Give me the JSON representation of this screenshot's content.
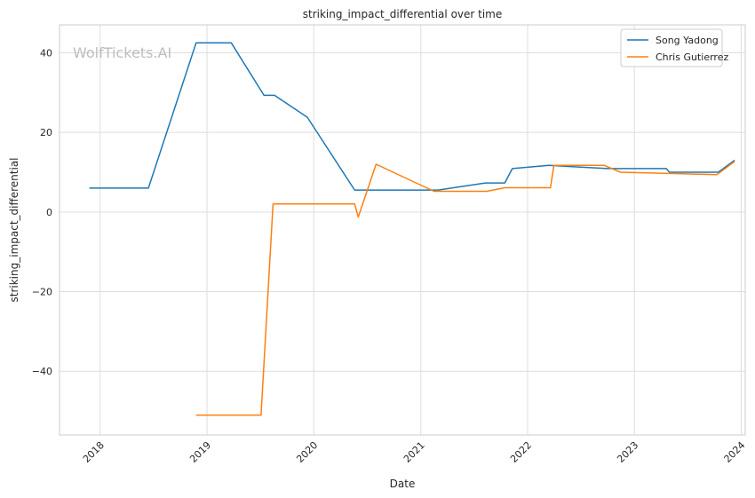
{
  "chart_data": {
    "type": "line",
    "title": "striking_impact_differential over time",
    "xlabel": "Date",
    "ylabel": "striking_impact_differential",
    "x_axis_type": "date",
    "xlim": [
      "2017-08-15",
      "2024-01-15"
    ],
    "ylim": [
      -56,
      47
    ],
    "x_ticks": [
      {
        "date": "2018-01-01",
        "label": "2018"
      },
      {
        "date": "2019-01-01",
        "label": "2019"
      },
      {
        "date": "2020-01-01",
        "label": "2020"
      },
      {
        "date": "2021-01-01",
        "label": "2021"
      },
      {
        "date": "2022-01-01",
        "label": "2022"
      },
      {
        "date": "2023-01-01",
        "label": "2023"
      },
      {
        "date": "2024-01-01",
        "label": "2024"
      }
    ],
    "y_ticks": [
      {
        "value": -40,
        "label": "−40"
      },
      {
        "value": -20,
        "label": "−20"
      },
      {
        "value": 0,
        "label": "0"
      },
      {
        "value": 20,
        "label": "20"
      },
      {
        "value": 40,
        "label": "40"
      }
    ],
    "grid": true,
    "legend_position": "top-right",
    "watermark": "WolfTickets.AI",
    "series": [
      {
        "name": "Song Yadong",
        "color": "#1f77b4",
        "points": [
          {
            "x": "2017-11-25",
            "y": 6
          },
          {
            "x": "2018-06-15",
            "y": 6
          },
          {
            "x": "2018-11-25",
            "y": 42.5
          },
          {
            "x": "2019-03-25",
            "y": 42.5
          },
          {
            "x": "2019-07-15",
            "y": 29.3
          },
          {
            "x": "2019-08-20",
            "y": 29.3
          },
          {
            "x": "2019-12-10",
            "y": 23.8
          },
          {
            "x": "2020-05-20",
            "y": 5.5
          },
          {
            "x": "2021-03-01",
            "y": 5.5
          },
          {
            "x": "2021-08-10",
            "y": 7.3
          },
          {
            "x": "2021-10-15",
            "y": 7.3
          },
          {
            "x": "2021-11-10",
            "y": 10.9
          },
          {
            "x": "2022-03-15",
            "y": 11.7
          },
          {
            "x": "2022-10-01",
            "y": 10.9
          },
          {
            "x": "2023-04-20",
            "y": 10.9
          },
          {
            "x": "2023-05-01",
            "y": 10
          },
          {
            "x": "2023-10-15",
            "y": 10
          },
          {
            "x": "2023-12-10",
            "y": 13
          }
        ]
      },
      {
        "name": "Chris Gutierrez",
        "color": "#ff7f0e",
        "points": [
          {
            "x": "2018-11-25",
            "y": -51
          },
          {
            "x": "2019-07-05",
            "y": -51
          },
          {
            "x": "2019-08-15",
            "y": 2
          },
          {
            "x": "2020-05-20",
            "y": 2
          },
          {
            "x": "2020-06-01",
            "y": -1.3
          },
          {
            "x": "2020-08-01",
            "y": 12
          },
          {
            "x": "2021-02-15",
            "y": 5.2
          },
          {
            "x": "2021-08-15",
            "y": 5.2
          },
          {
            "x": "2021-10-15",
            "y": 6.1
          },
          {
            "x": "2022-03-20",
            "y": 6.1
          },
          {
            "x": "2022-04-01",
            "y": 11.7
          },
          {
            "x": "2022-09-20",
            "y": 11.7
          },
          {
            "x": "2022-11-15",
            "y": 10
          },
          {
            "x": "2023-10-10",
            "y": 9.4
          },
          {
            "x": "2023-12-10",
            "y": 12.7
          }
        ]
      }
    ]
  }
}
